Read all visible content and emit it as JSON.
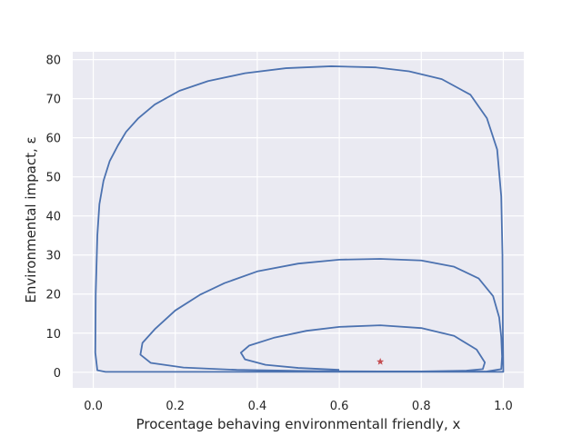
{
  "chart_data": {
    "type": "line",
    "title": "",
    "xlabel": "Procentage behaving environmentall friendly, x",
    "ylabel": "Environmental impact, ε",
    "xlim": [
      -0.05,
      1.05
    ],
    "ylim": [
      -4,
      82
    ],
    "xticks": [
      0.0,
      0.2,
      0.4,
      0.6,
      0.8,
      1.0
    ],
    "xtick_labels": [
      "0.0",
      "0.2",
      "0.4",
      "0.6",
      "0.8",
      "1.0"
    ],
    "yticks": [
      0,
      10,
      20,
      30,
      40,
      50,
      60,
      70,
      80
    ],
    "ytick_labels": [
      "0",
      "10",
      "20",
      "30",
      "40",
      "50",
      "60",
      "70",
      "80"
    ],
    "grid": true,
    "style": "seaborn-darkgrid",
    "colors": {
      "background": "#eaeaf2",
      "grid": "#ffffff",
      "line": "#4c72b0",
      "marker": "#c44e52"
    },
    "series": [
      {
        "type": "line",
        "x": [
          0.6,
          0.5,
          0.42,
          0.37,
          0.36,
          0.38,
          0.44,
          0.52,
          0.6,
          0.7,
          0.8,
          0.88,
          0.935,
          0.955,
          0.95,
          0.91,
          0.8,
          0.7,
          0.6,
          0.5,
          0.35,
          0.22,
          0.14,
          0.115,
          0.12,
          0.15,
          0.2,
          0.26,
          0.32,
          0.4,
          0.5,
          0.6,
          0.7,
          0.8,
          0.88,
          0.94,
          0.975,
          0.99,
          0.995,
          0.997,
          0.995,
          0.96,
          0.85,
          0.6,
          0.3,
          0.1,
          0.03,
          0.01,
          0.005,
          0.006,
          0.01,
          0.015,
          0.025,
          0.04,
          0.06,
          0.08,
          0.11,
          0.15,
          0.21,
          0.28,
          0.37,
          0.47,
          0.58,
          0.69,
          0.77,
          0.85,
          0.92,
          0.96,
          0.985,
          0.995,
          0.998,
          0.999,
          1.0,
          1.0,
          0.9,
          0.7,
          0.5,
          0.3
        ],
        "y": [
          0.6,
          1.1,
          1.9,
          3.3,
          5.0,
          6.8,
          8.8,
          10.6,
          11.6,
          12.0,
          11.3,
          9.3,
          5.8,
          2.5,
          0.8,
          0.4,
          0.2,
          0.2,
          0.25,
          0.35,
          0.6,
          1.2,
          2.4,
          4.5,
          7.5,
          11.0,
          15.8,
          19.8,
          22.8,
          25.8,
          27.8,
          28.8,
          29.0,
          28.6,
          27.0,
          24.0,
          19.5,
          14.0,
          9.0,
          4.0,
          0.8,
          0.2,
          0.1,
          0.1,
          0.1,
          0.1,
          0.1,
          0.5,
          5.0,
          20.0,
          35.0,
          43.0,
          49.0,
          54.0,
          58.0,
          61.5,
          65.0,
          68.5,
          72.0,
          74.5,
          76.5,
          77.8,
          78.3,
          78.0,
          77.0,
          75.0,
          71.0,
          65.0,
          57.0,
          45.0,
          30.0,
          10.0,
          0.3,
          0.1,
          0.1,
          0.1,
          0.1,
          0.1
        ]
      },
      {
        "type": "scatter",
        "marker": "star",
        "x": [
          0.7
        ],
        "y": [
          2.7
        ]
      }
    ]
  }
}
